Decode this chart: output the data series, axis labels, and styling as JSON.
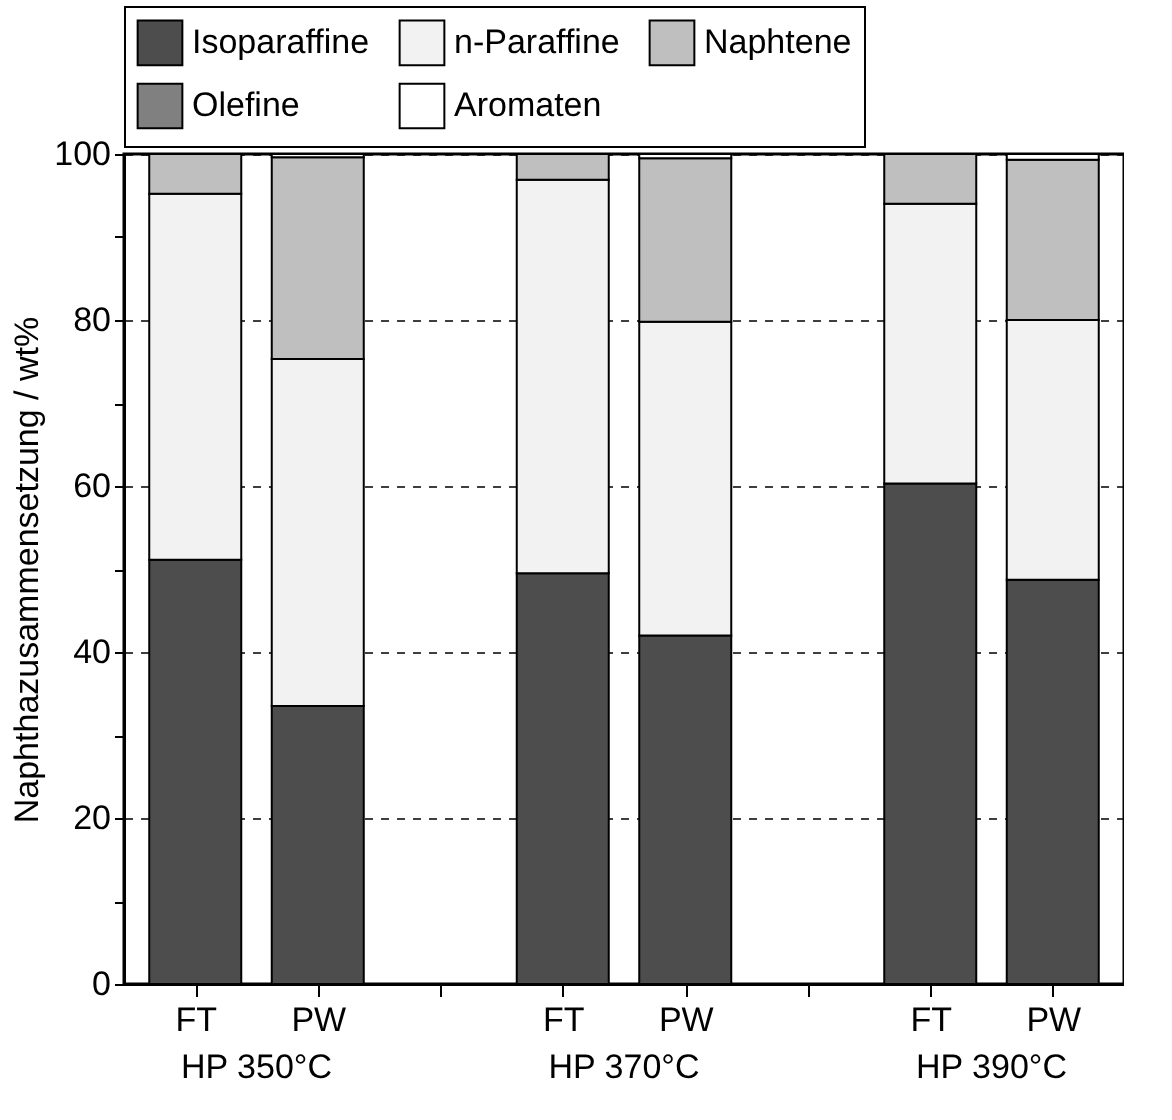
{
  "chart_data": {
    "type": "bar",
    "stacked": true,
    "categories": [
      "FT",
      "PW",
      null,
      "FT",
      "PW",
      null,
      "FT",
      "PW"
    ],
    "ylabel": "Naphthazusammensetzung / wt%",
    "ylim": [
      0,
      100
    ],
    "yticks": [
      0,
      {
        "value": 10,
        "label": null
      },
      20,
      {
        "value": 30,
        "label": null
      },
      40,
      {
        "value": 50,
        "label": null
      },
      60,
      {
        "value": 70,
        "label": null
      },
      80,
      {
        "value": 90,
        "label": null
      },
      100
    ],
    "grid": "y",
    "legend": "top",
    "annotations": [
      "HP 350°C",
      "HP 370°C",
      "HP 390°C"
    ],
    "series": [
      {
        "name": "Isoparaffine",
        "color": "#4d4d4d",
        "values": [
          51.1,
          33.5,
          null,
          49.5,
          42,
          null,
          60.3,
          48.7
        ]
      },
      {
        "name": "n-Paraffine",
        "color": "#f2f2f2",
        "values": [
          44.1,
          41.8,
          null,
          47.4,
          37.8,
          null,
          33.7,
          31.3
        ]
      },
      {
        "name": "Naphtene",
        "color": "#bfbfbf",
        "values": [
          4.8,
          24.3,
          null,
          3.1,
          19.7,
          null,
          6,
          19.3
        ]
      },
      {
        "name": "Olefine",
        "color": "#808080",
        "values": [
          null,
          null,
          null,
          null,
          null,
          null,
          null,
          null
        ]
      },
      {
        "name": "Aromaten",
        "color": "#ffffff",
        "values": [
          null,
          0.4,
          null,
          null,
          0.5,
          null,
          null,
          0.7
        ]
      }
    ]
  }
}
